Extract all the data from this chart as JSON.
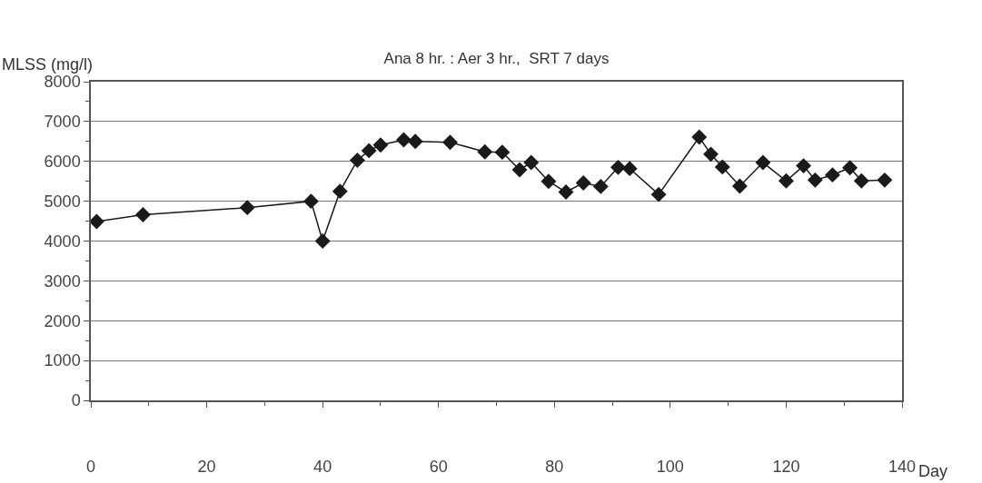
{
  "chart_data": {
    "type": "line",
    "title": "Ana 8 hr. : Aer 3 hr.,  SRT 7 days",
    "ylabel": "MLSS (mg/l)",
    "xlabel": "Day",
    "x": [
      1,
      9,
      27,
      38,
      40,
      43,
      46,
      48,
      50,
      54,
      56,
      62,
      68,
      71,
      74,
      76,
      79,
      82,
      85,
      88,
      91,
      93,
      98,
      105,
      107,
      109,
      112,
      116,
      120,
      123,
      125,
      128,
      131,
      133,
      137
    ],
    "series": [
      {
        "color": "#1a1a1a",
        "values": [
          4490,
          4660,
          4840,
          5000,
          4000,
          5250,
          6030,
          6270,
          6410,
          6540,
          6500,
          6480,
          6240,
          6230,
          5790,
          5970,
          5500,
          5230,
          5460,
          5370,
          5850,
          5820,
          5170,
          6610,
          6180,
          5860,
          5380,
          5970,
          5510,
          5890,
          5530,
          5660,
          5840,
          5510,
          5530
        ]
      }
    ],
    "xlim": [
      0,
      140
    ],
    "xticks": [
      0,
      {
        "value": 10,
        "label": null
      },
      20,
      {
        "value": 30,
        "label": null
      },
      40,
      {
        "value": 50,
        "label": null
      },
      60,
      {
        "value": 70,
        "label": null
      },
      80,
      {
        "value": 90,
        "label": null
      },
      100,
      {
        "value": 110,
        "label": null
      },
      120,
      {
        "value": 130,
        "label": null
      },
      140
    ],
    "ylim": [
      0,
      8000
    ],
    "yticks": [
      0,
      {
        "value": 500,
        "label": null
      },
      1000,
      {
        "value": 1500,
        "label": null
      },
      2000,
      {
        "value": 2500,
        "label": null
      },
      3000,
      {
        "value": 3500,
        "label": null
      },
      4000,
      {
        "value": 4500,
        "label": null
      },
      5000,
      {
        "value": 5500,
        "label": null
      },
      6000,
      {
        "value": 6500,
        "label": null
      },
      7000,
      {
        "value": 7500,
        "label": null
      },
      8000
    ],
    "grid": "y",
    "marker": "diamond",
    "line_style": "solid"
  }
}
